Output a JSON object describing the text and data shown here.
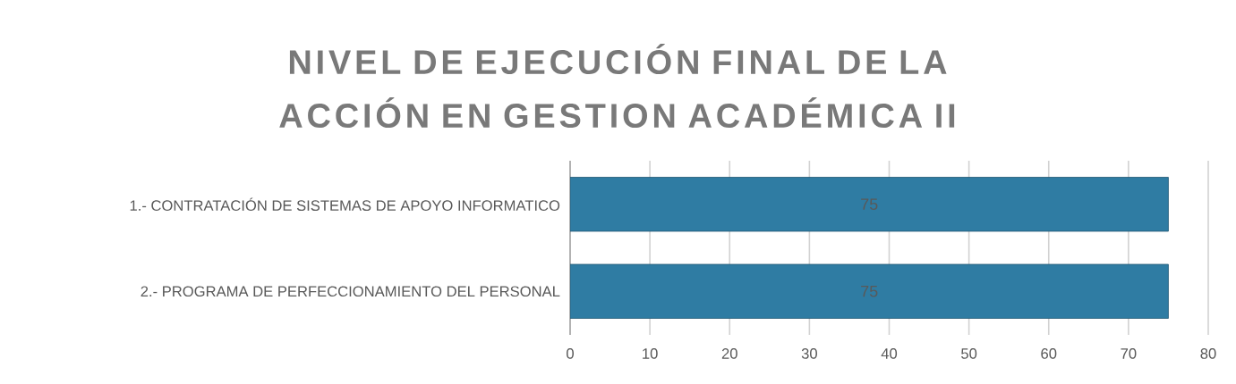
{
  "chart_data": {
    "type": "bar",
    "orientation": "horizontal",
    "title": "NIVEL DE EJECUCIÓN FINAL DE LA ACCIÓN EN GESTION  ACADÉMICA II",
    "categories": [
      "1.- CONTRATACIÓN  DE SISTEMAS DE APOYO INFORMATICO",
      "2.- PROGRAMA DE PERFECCIONAMIENTO DEL PERSONAL"
    ],
    "values": [
      75,
      75
    ],
    "color": "#2f7ca3",
    "data_labels": true,
    "xlim": [
      0,
      80
    ],
    "xticks": [
      0,
      10,
      20,
      30,
      40,
      50,
      60,
      70,
      80
    ],
    "grid": "x"
  }
}
